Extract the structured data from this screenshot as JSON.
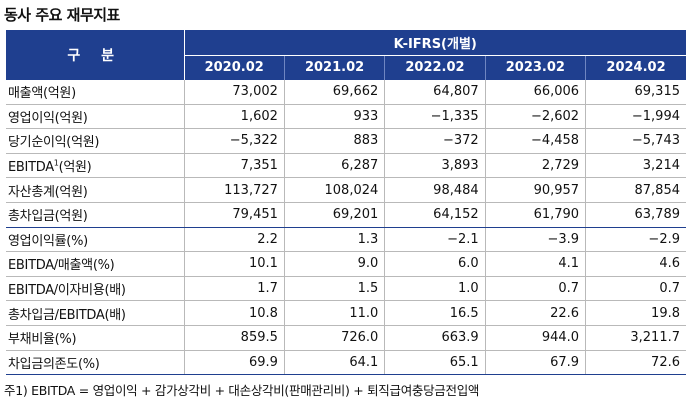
{
  "title": "동사 주요 재무지표",
  "header": {
    "row_label": "구 분",
    "group_label": "K-IFRS(개별)",
    "years": [
      "2020.02",
      "2021.02",
      "2022.02",
      "2023.02",
      "2024.02"
    ]
  },
  "rows": [
    {
      "label": "매출액(억원)",
      "values": [
        "73,002",
        "69,662",
        "64,807",
        "66,006",
        "69,315"
      ]
    },
    {
      "label": "영업이익(억원)",
      "values": [
        "1,602",
        "933",
        "−1,335",
        "−2,602",
        "−1,994"
      ]
    },
    {
      "label": "당기순이익(억원)",
      "values": [
        "−5,322",
        "883",
        "−372",
        "−4,458",
        "−5,743"
      ]
    },
    {
      "label": "EBITDA",
      "label_sup": "1",
      "label_suffix": "(억원)",
      "values": [
        "7,351",
        "6,287",
        "3,893",
        "2,729",
        "3,214"
      ]
    },
    {
      "label": "자산총계(억원)",
      "values": [
        "113,727",
        "108,024",
        "98,484",
        "90,957",
        "87,854"
      ]
    },
    {
      "label": "총차입금(억원)",
      "values": [
        "79,451",
        "69,201",
        "64,152",
        "61,790",
        "63,789"
      ]
    },
    {
      "label": "영업이익률(%)",
      "values": [
        "2.2",
        "1.3",
        "−2.1",
        "−3.9",
        "−2.9"
      ]
    },
    {
      "label": "EBITDA/매출액(%)",
      "values": [
        "10.1",
        "9.0",
        "6.0",
        "4.1",
        "4.6"
      ]
    },
    {
      "label": "EBITDA/이자비용(배)",
      "values": [
        "1.7",
        "1.5",
        "1.0",
        "0.7",
        "0.7"
      ]
    },
    {
      "label": "총차입금/EBITDA(배)",
      "values": [
        "10.8",
        "11.0",
        "16.5",
        "22.6",
        "19.8"
      ]
    },
    {
      "label": "부채비율(%)",
      "values": [
        "859.5",
        "726.0",
        "663.9",
        "944.0",
        "3,211.7"
      ]
    },
    {
      "label": "차입금의존도(%)",
      "values": [
        "69.9",
        "64.1",
        "65.1",
        "67.9",
        "72.6"
      ]
    }
  ],
  "footnote": "주1) EBITDA = 영업이익 + 감가상각비 + 대손상각비(판매관리비) + 퇴직급여충당금전입액"
}
